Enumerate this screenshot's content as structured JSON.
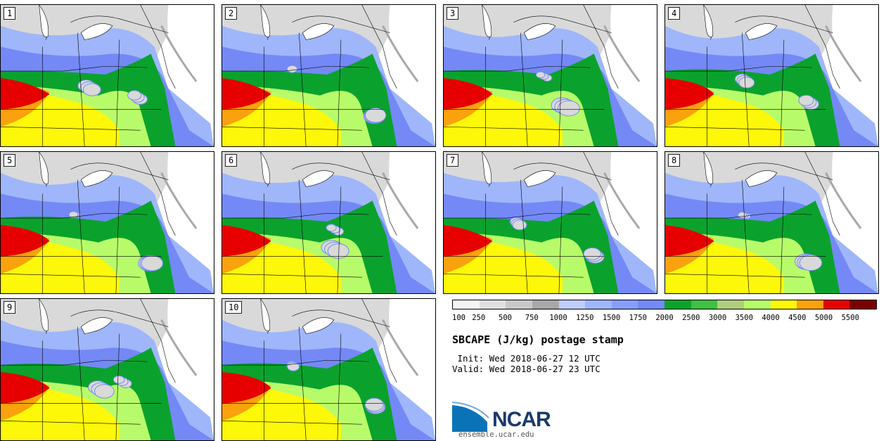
{
  "figure": {
    "title": "SBCAPE (J/kg) postage stamp",
    "init_text": " Init: Wed 2018-06-27 12 UTC",
    "valid_text": "Valid: Wed 2018-06-27 23 UTC"
  },
  "members": [
    {
      "label": "1"
    },
    {
      "label": "2"
    },
    {
      "label": "3"
    },
    {
      "label": "4"
    },
    {
      "label": "5"
    },
    {
      "label": "6"
    },
    {
      "label": "7"
    },
    {
      "label": "8"
    },
    {
      "label": "9"
    },
    {
      "label": "10"
    }
  ],
  "colorbar": {
    "tick_labels": [
      "100",
      "250",
      "500",
      "750",
      "1000",
      "1250",
      "1500",
      "1750",
      "2000",
      "2500",
      "3000",
      "3500",
      "4000",
      "4500",
      "5000",
      "5500"
    ],
    "colors": [
      "#f5f5f5",
      "#e0e0e0",
      "#c8c8c8",
      "#a8a8a8",
      "#c0cdfb",
      "#9fb6fb",
      "#879ef9",
      "#7489f5",
      "#0aa22d",
      "#40bf43",
      "#b2cc7e",
      "#b8fb6a",
      "#fdf70a",
      "#faa20d",
      "#e60000",
      "#7a0000"
    ]
  },
  "branding": {
    "org_name": "NCAR",
    "url": "ensemble.ucar.edu"
  },
  "map_fill_colors": {
    "background": "#ffffff",
    "light_gray": "#d9d9d9",
    "mid_gray": "#a8a8a8",
    "light_blue": "#9fb6fb",
    "blue": "#7489f5",
    "green": "#0aa22d",
    "light_green": "#b8fb6a",
    "yellow": "#fdf70a",
    "orange": "#faa20d",
    "red": "#e60000"
  }
}
